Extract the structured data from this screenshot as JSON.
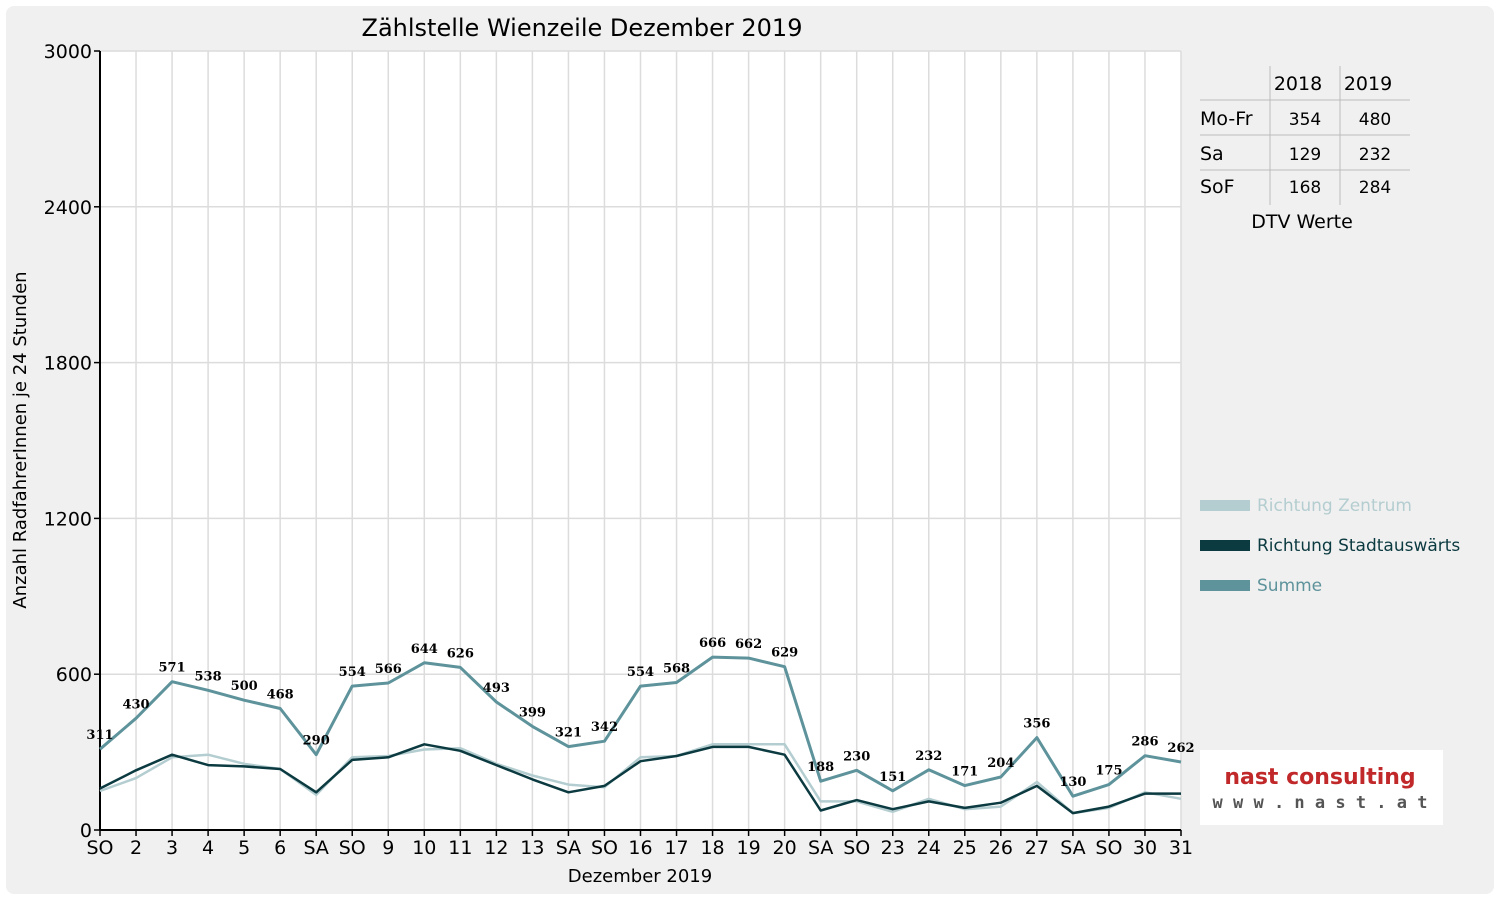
{
  "chart_data": {
    "type": "line",
    "title": "Zählstelle Wienzeile Dezember 2019",
    "xlabel": "Dezember 2019",
    "ylabel": "Anzahl RadfahrerInnen je 24 Stunden",
    "ylim": [
      0,
      3000
    ],
    "yticks": [
      "0",
      "600",
      "1200",
      "1800",
      "2400",
      "3000"
    ],
    "grid": true,
    "legend_position": "right",
    "categories": [
      "SO",
      "2",
      "3",
      "4",
      "5",
      "6",
      "SA",
      "SO",
      "9",
      "10",
      "11",
      "12",
      "13",
      "SA",
      "SO",
      "16",
      "17",
      "18",
      "19",
      "20",
      "SA",
      "SO",
      "23",
      "24",
      "25",
      "26",
      "27",
      "SA",
      "SO",
      "30",
      "31"
    ],
    "category_colors": [
      "#e00000",
      "#000000",
      "#000000",
      "#000000",
      "#000000",
      "#000000",
      "#000000",
      "#e00000",
      "#000000",
      "#000000",
      "#000000",
      "#000000",
      "#000000",
      "#000000",
      "#e00000",
      "#000000",
      "#000000",
      "#000000",
      "#000000",
      "#000000",
      "#000000",
      "#e00000",
      "#000000",
      "#000000",
      "#e00000",
      "#e00000",
      "#000000",
      "#000000",
      "#e00000",
      "#000000",
      "#000000"
    ],
    "series": [
      {
        "name": "Richtung Zentrum",
        "color": "#b4cdd0",
        "values": [
          150,
          200,
          280,
          290,
          255,
          235,
          135,
          280,
          285,
          310,
          315,
          255,
          210,
          175,
          165,
          280,
          285,
          330,
          330,
          330,
          110,
          110,
          70,
          120,
          80,
          90,
          185,
          65,
          85,
          145,
          120
        ]
      },
      {
        "name": "Richtung Stadtauswärts",
        "color": "#0b3a40",
        "values": [
          160,
          230,
          290,
          250,
          245,
          235,
          145,
          270,
          280,
          330,
          305,
          250,
          195,
          145,
          170,
          265,
          285,
          320,
          320,
          290,
          75,
          115,
          80,
          110,
          85,
          105,
          170,
          65,
          90,
          140,
          140
        ]
      },
      {
        "name": "Summe",
        "color": "#5e939b",
        "values": [
          311,
          430,
          571,
          538,
          500,
          468,
          290,
          554,
          566,
          644,
          626,
          493,
          399,
          321,
          342,
          554,
          568,
          666,
          662,
          629,
          188,
          230,
          151,
          232,
          171,
          204,
          356,
          130,
          175,
          286,
          262
        ]
      }
    ],
    "data_labels": [
      "311",
      "430",
      "571",
      "538",
      "500",
      "468",
      "290",
      "554",
      "566",
      "644",
      "626",
      "493",
      "399",
      "321",
      "342",
      "554",
      "568",
      "666",
      "662",
      "629",
      "188",
      "230",
      "151",
      "232",
      "171",
      "204",
      "356",
      "130",
      "175",
      "286",
      "262"
    ]
  },
  "dtv_table": {
    "columns": [
      "2018",
      "2019"
    ],
    "rows": [
      {
        "label": "Mo-Fr",
        "v2018": "354",
        "v2019": "480"
      },
      {
        "label": "Sa",
        "v2018": "129",
        "v2019": "232"
      },
      {
        "label": "SoF",
        "v2018": "168",
        "v2019": "284"
      }
    ],
    "caption": "DTV Werte"
  },
  "logo": {
    "name": "nast consulting",
    "url": "w w w . n a s t . a t"
  },
  "colors": {
    "background": "#f0f0f0",
    "plot_background": "#ffffff",
    "holiday_red": "#e00000",
    "logo_red": "#c0282a",
    "logo_gray": "#555555"
  }
}
